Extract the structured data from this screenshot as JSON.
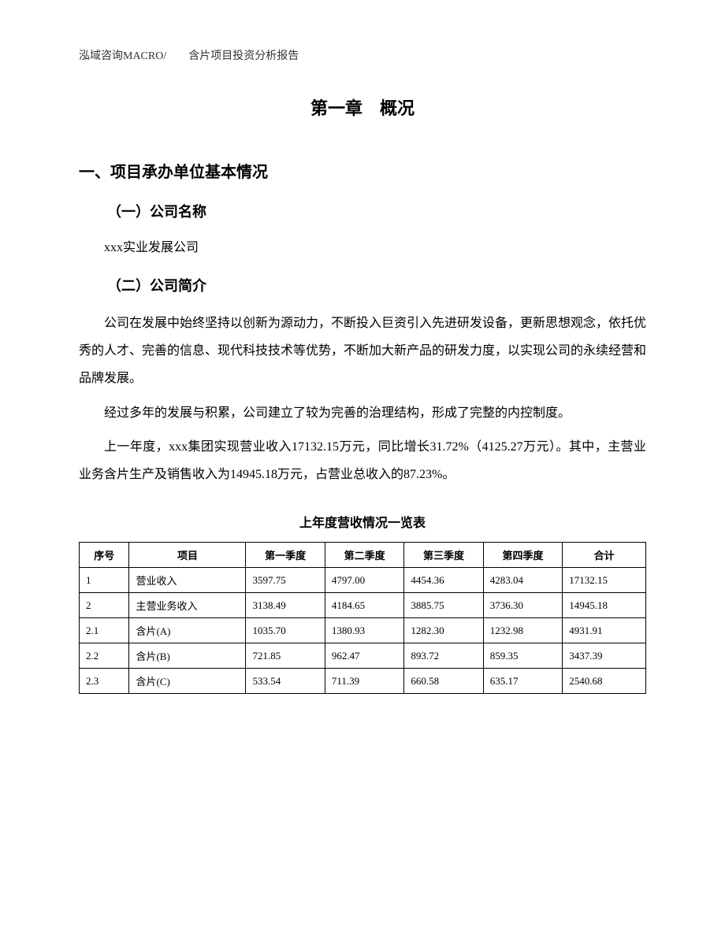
{
  "header": {
    "text": "泓域咨询MACRO/　　含片项目投资分析报告"
  },
  "chapter": {
    "title": "第一章　概况"
  },
  "section1": {
    "title": "一、项目承办单位基本情况",
    "subsection1": {
      "title": "（一）公司名称",
      "content": "xxx实业发展公司"
    },
    "subsection2": {
      "title": "（二）公司简介",
      "paragraph1": "公司在发展中始终坚持以创新为源动力，不断投入巨资引入先进研发设备，更新思想观念，依托优秀的人才、完善的信息、现代科技技术等优势，不断加大新产品的研发力度，以实现公司的永续经营和品牌发展。",
      "paragraph2": "经过多年的发展与积累，公司建立了较为完善的治理结构，形成了完整的内控制度。",
      "paragraph3": "上一年度，xxx集团实现营业收入17132.15万元，同比增长31.72%（4125.27万元）。其中，主营业业务含片生产及销售收入为14945.18万元，占营业总收入的87.23%。"
    }
  },
  "table": {
    "title": "上年度营收情况一览表",
    "columns": [
      "序号",
      "项目",
      "第一季度",
      "第二季度",
      "第三季度",
      "第四季度",
      "合计"
    ],
    "rows": [
      [
        "1",
        "营业收入",
        "3597.75",
        "4797.00",
        "4454.36",
        "4283.04",
        "17132.15"
      ],
      [
        "2",
        "主营业务收入",
        "3138.49",
        "4184.65",
        "3885.75",
        "3736.30",
        "14945.18"
      ],
      [
        "2.1",
        "含片(A)",
        "1035.70",
        "1380.93",
        "1282.30",
        "1232.98",
        "4931.91"
      ],
      [
        "2.2",
        "含片(B)",
        "721.85",
        "962.47",
        "893.72",
        "859.35",
        "3437.39"
      ],
      [
        "2.3",
        "含片(C)",
        "533.54",
        "711.39",
        "660.58",
        "635.17",
        "2540.68"
      ]
    ]
  }
}
